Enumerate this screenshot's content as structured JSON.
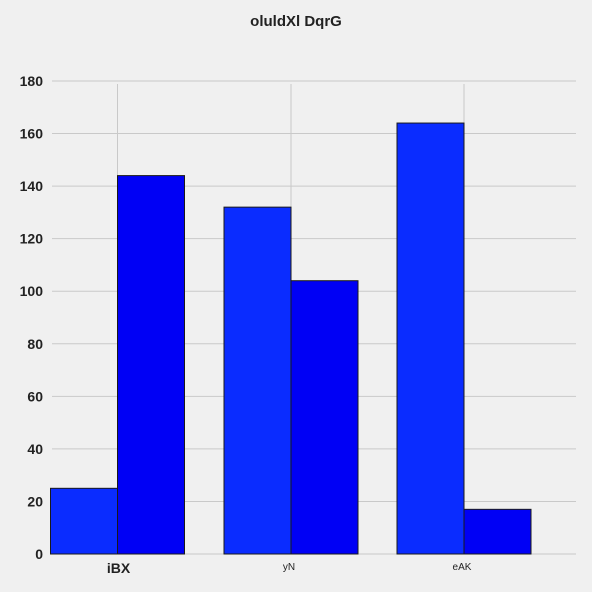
{
  "chart_data": {
    "type": "bar",
    "title": "oluldXl DqrG",
    "xlabel": "",
    "ylabel": "",
    "categories": [
      "iBX",
      "yN",
      "eAK"
    ],
    "series": [
      {
        "values": [
          25,
          132,
          164
        ],
        "color": "#0a2cff"
      },
      {
        "values": [
          144,
          104,
          17
        ],
        "color": "#0000f5"
      }
    ],
    "ylim": [
      0,
      180
    ],
    "yticks": [
      0,
      20,
      40,
      60,
      80,
      100,
      120,
      140,
      160,
      180
    ],
    "grid": true,
    "legend": "none",
    "colors": {
      "background": "#f0f0f0",
      "grid": "#c9c9c9",
      "bar_edge": "#1a1a1a"
    }
  }
}
